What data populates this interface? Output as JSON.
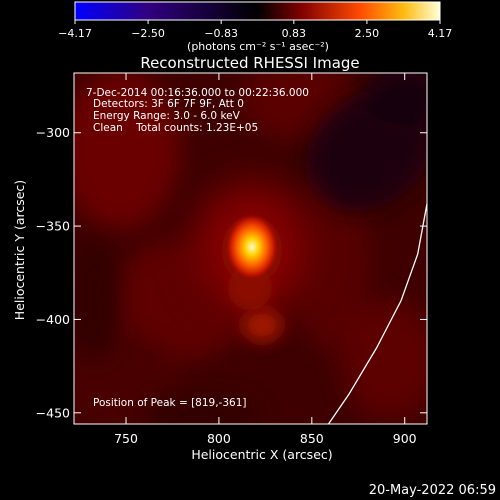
{
  "colorbar": {
    "ticks": [
      {
        "value": -4.17,
        "label": "−4.17"
      },
      {
        "value": -2.5,
        "label": "−2.50"
      },
      {
        "value": -0.83,
        "label": "−0.83"
      },
      {
        "value": 0.83,
        "label": "0.83"
      },
      {
        "value": 2.5,
        "label": "2.50"
      },
      {
        "value": 4.17,
        "label": "4.17"
      }
    ],
    "range": [
      -4.17,
      4.17
    ],
    "units": "(photons cm⁻² s⁻¹ asec⁻²)",
    "colormap": [
      "#0000ff",
      "#400090",
      "#000000",
      "#7a0000",
      "#ff4000",
      "#ffaa00",
      "#ffffcc"
    ]
  },
  "chart_data": {
    "type": "heatmap",
    "title": "Reconstructed RHESSI Image",
    "xlabel": "Heliocentric X (arcsec)",
    "ylabel": "Heliocentric Y (arcsec)",
    "xlim": [
      722,
      912
    ],
    "ylim": [
      -456,
      -268
    ],
    "x_ticks": [
      750,
      800,
      850,
      900
    ],
    "y_ticks": [
      -300,
      -350,
      -400,
      -450
    ],
    "annotations": [
      "7-Dec-2014 00:16:36.000 to 00:22:36.000",
      "Detectors: 3F 6F 7F 9F, Att 0",
      "Energy Range: 3.0 - 6.0 keV",
      "Clean    Total counts: 1.23E+05"
    ],
    "peak": {
      "x": 819,
      "y": -361,
      "label": "Position of Peak = [819,-361]"
    },
    "limb_curve": [
      [
        859,
        -456
      ],
      [
        870,
        -440
      ],
      [
        885,
        -415
      ],
      [
        898,
        -390
      ],
      [
        907,
        -365
      ],
      [
        912,
        -338
      ]
    ]
  },
  "footer": {
    "timestamp": "20-May-2022 06:59"
  }
}
